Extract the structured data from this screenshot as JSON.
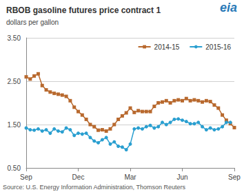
{
  "chart_data": {
    "type": "line",
    "title": "RBOB gasoline futures price contract 1",
    "subtitle": "dollars per gallon",
    "source": "Source: U.S. Energy Information Administration, Thomson Reuters",
    "logo_text": "eia",
    "categories": [
      "Sep",
      null,
      null,
      null,
      null,
      null,
      null,
      null,
      null,
      null,
      null,
      null,
      null,
      "Dec",
      null,
      null,
      null,
      null,
      null,
      null,
      null,
      null,
      null,
      null,
      null,
      null,
      "Mar",
      null,
      null,
      null,
      null,
      null,
      null,
      null,
      null,
      null,
      null,
      null,
      null,
      "Jun",
      null,
      null,
      null,
      null,
      null,
      null,
      null,
      null,
      null,
      null,
      null,
      null,
      "Sep"
    ],
    "series": [
      {
        "name": "2014-15",
        "color": "#b8692e",
        "marker": "square",
        "values": [
          2.6,
          2.55,
          2.62,
          2.67,
          2.4,
          2.3,
          2.25,
          2.22,
          2.2,
          2.18,
          2.15,
          2.05,
          1.9,
          1.8,
          1.72,
          1.62,
          1.5,
          1.45,
          1.37,
          1.38,
          1.35,
          1.4,
          1.5,
          1.62,
          1.7,
          1.77,
          1.88,
          1.78,
          1.82,
          1.8,
          1.8,
          1.8,
          1.92,
          2.0,
          2.02,
          2.05,
          2.0,
          2.05,
          2.07,
          2.05,
          2.1,
          2.05,
          2.07,
          2.05,
          2.02,
          2.05,
          2.03,
          1.95,
          1.88,
          1.72,
          1.6,
          1.52,
          1.43
        ]
      },
      {
        "name": "2015-16",
        "color": "#2a9fd0",
        "marker": "circle",
        "values": [
          1.42,
          1.38,
          1.37,
          1.4,
          1.35,
          1.38,
          1.3,
          1.4,
          1.35,
          1.33,
          1.42,
          1.38,
          1.25,
          1.3,
          1.28,
          1.3,
          1.2,
          1.12,
          1.08,
          1.15,
          1.2,
          1.05,
          1.1,
          1.0,
          0.98,
          0.92,
          1.05,
          1.4,
          1.42,
          1.4,
          1.45,
          1.48,
          1.42,
          1.45,
          1.55,
          1.5,
          1.55,
          1.62,
          1.63,
          1.6,
          1.57,
          1.52,
          1.52,
          1.55,
          1.45,
          1.38,
          1.42,
          1.38,
          1.4,
          1.45,
          1.55,
          1.55,
          null
        ]
      }
    ],
    "ylim": [
      0.5,
      3.5
    ],
    "yticks": [
      {
        "value": 0.5,
        "label": "0.50"
      },
      {
        "value": 1.5,
        "label": "1.50"
      },
      {
        "value": 2.5,
        "label": "2.50"
      },
      {
        "value": 3.5,
        "label": "3.50"
      }
    ],
    "grid": true,
    "legend": "top-right"
  }
}
